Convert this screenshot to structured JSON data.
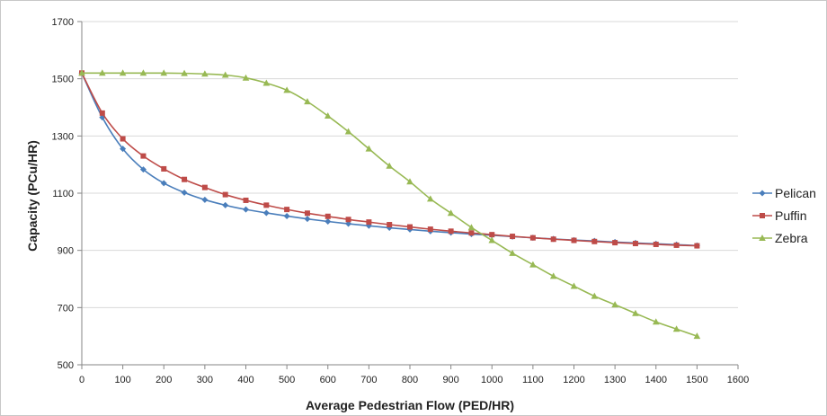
{
  "chart_data": {
    "type": "line",
    "title": "",
    "xlabel": "Average Pedestrian Flow (PED/HR)",
    "ylabel": "Capacity (PCu/HR)",
    "xlim": [
      0,
      1600
    ],
    "ylim": [
      500,
      1700
    ],
    "xticks": [
      0,
      100,
      200,
      300,
      400,
      500,
      600,
      700,
      800,
      900,
      1000,
      1100,
      1200,
      1300,
      1400,
      1500,
      1600
    ],
    "yticks": [
      500,
      700,
      900,
      1100,
      1300,
      1500,
      1700
    ],
    "grid": "horizontal",
    "legend_position": "right",
    "x": [
      0,
      50,
      100,
      150,
      200,
      250,
      300,
      350,
      400,
      450,
      500,
      550,
      600,
      650,
      700,
      750,
      800,
      850,
      900,
      950,
      1000,
      1050,
      1100,
      1150,
      1200,
      1250,
      1300,
      1350,
      1400,
      1450,
      1500
    ],
    "series": [
      {
        "name": "Pelican",
        "color": "#4a7ebb",
        "marker": "diamond",
        "values": [
          1520,
          1365,
          1255,
          1183,
          1135,
          1102,
          1077,
          1058,
          1043,
          1031,
          1020,
          1010,
          1001,
          993,
          986,
          979,
          973,
          967,
          962,
          957,
          953,
          948,
          944,
          940,
          936,
          933,
          929,
          926,
          923,
          920,
          917
        ]
      },
      {
        "name": "Puffin",
        "color": "#be4b48",
        "marker": "square",
        "values": [
          1520,
          1380,
          1290,
          1230,
          1185,
          1148,
          1120,
          1095,
          1075,
          1058,
          1043,
          1030,
          1019,
          1008,
          999,
          990,
          982,
          974,
          967,
          961,
          955,
          949,
          944,
          939,
          935,
          931,
          927,
          924,
          921,
          918,
          916
        ]
      },
      {
        "name": "Zebra",
        "color": "#98b954",
        "marker": "triangle",
        "values": [
          1520,
          1520,
          1520,
          1520,
          1520,
          1519,
          1517,
          1513,
          1503,
          1485,
          1460,
          1420,
          1370,
          1315,
          1255,
          1195,
          1140,
          1080,
          1030,
          980,
          935,
          890,
          850,
          810,
          775,
          740,
          710,
          680,
          650,
          625,
          600
        ]
      }
    ]
  }
}
